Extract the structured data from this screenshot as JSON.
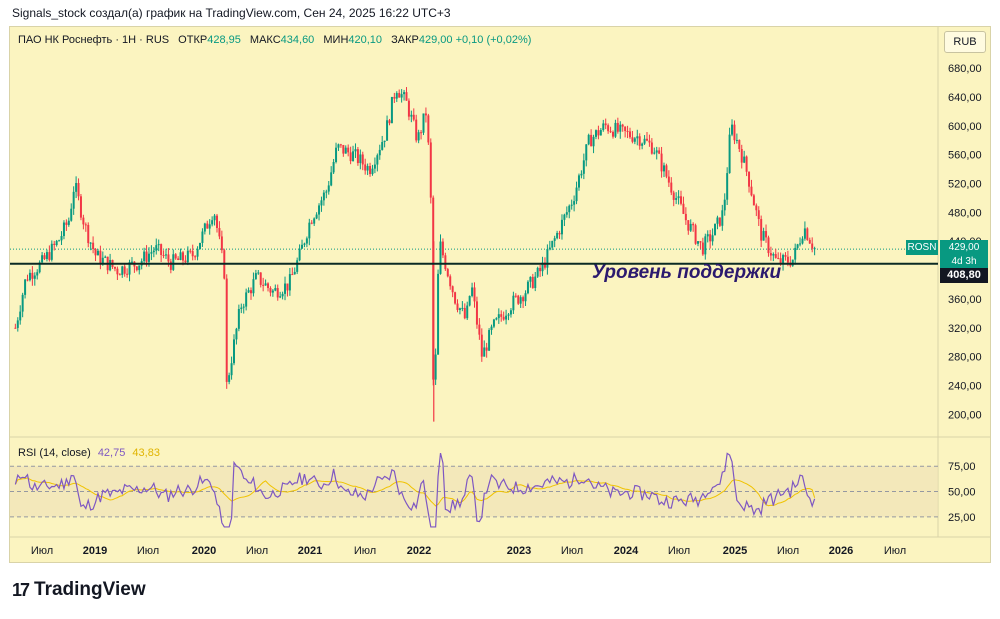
{
  "header": {
    "caption": "Signals_stock создал(а) график на TradingView.com, Сен 24, 2025 16:22 UTC+3"
  },
  "legend": {
    "symbol": "ПАО НК Роснефть · 1Н · RUS",
    "open_label": "ОТКР",
    "open": "428,95",
    "high_label": "МАКС",
    "high": "434,60",
    "low_label": "МИН",
    "low": "420,10",
    "close_label": "ЗАКР",
    "close": "429,00",
    "change": "+0,10 (+0,02%)"
  },
  "currency": "RUB",
  "price_tags": {
    "ticker": "ROSN",
    "price": "429,00",
    "countdown": "4d 3h",
    "support_level": "408,80"
  },
  "annotation": "Уровень поддержки",
  "rsi_legend": {
    "label": "RSI (14, close)",
    "rsi": "42,75",
    "ma": "43,83"
  },
  "footer": {
    "brand": "TradingView",
    "logo_mark": "17"
  },
  "colors": {
    "background": "#fbf4c0",
    "up": "#089981",
    "down": "#f23645",
    "rsi_line": "#7e57c2",
    "rsi_ma": "#f0c300",
    "support_line": "#0b2a24"
  },
  "chart_data": {
    "type": "candlestick",
    "x_tick_labels": [
      "Июл",
      "2019",
      "Июл",
      "2020",
      "Июл",
      "2021",
      "Июл",
      "2022",
      "2023",
      "Июл",
      "2024",
      "Июл",
      "2025",
      "Июл",
      "2026",
      "Июл"
    ],
    "y_ticks": [
      200,
      240,
      280,
      320,
      360,
      400,
      440,
      480,
      520,
      560,
      600,
      640,
      680
    ],
    "y_tick_labels": [
      "200,00",
      "240,00",
      "280,00",
      "320,00",
      "360,00",
      "400,00",
      "440,00",
      "480,00",
      "520,00",
      "560,00",
      "600,00",
      "640,00",
      "680,00"
    ],
    "ylim": [
      170,
      705
    ],
    "support_level": 408.8,
    "last_price": 429.0,
    "price_path": [
      [
        2018.25,
        320
      ],
      [
        2018.35,
        390
      ],
      [
        2018.5,
        410
      ],
      [
        2018.65,
        440
      ],
      [
        2018.75,
        470
      ],
      [
        2018.8,
        520
      ],
      [
        2018.9,
        460
      ],
      [
        2019.0,
        420
      ],
      [
        2019.2,
        400
      ],
      [
        2019.4,
        410
      ],
      [
        2019.55,
        430
      ],
      [
        2019.7,
        410
      ],
      [
        2019.9,
        420
      ],
      [
        2020.0,
        450
      ],
      [
        2020.1,
        485
      ],
      [
        2020.15,
        440
      ],
      [
        2020.2,
        395
      ],
      [
        2020.22,
        240
      ],
      [
        2020.35,
        350
      ],
      [
        2020.5,
        390
      ],
      [
        2020.65,
        370
      ],
      [
        2020.8,
        380
      ],
      [
        2020.9,
        420
      ],
      [
        2021.0,
        470
      ],
      [
        2021.15,
        510
      ],
      [
        2021.25,
        570
      ],
      [
        2021.4,
        560
      ],
      [
        2021.55,
        540
      ],
      [
        2021.7,
        590
      ],
      [
        2021.8,
        655
      ],
      [
        2021.9,
        630
      ],
      [
        2022.0,
        580
      ],
      [
        2022.08,
        620
      ],
      [
        2022.12,
        520
      ],
      [
        2022.15,
        190
      ],
      [
        2022.2,
        440
      ],
      [
        2022.35,
        360
      ],
      [
        2022.45,
        330
      ],
      [
        2022.5,
        380
      ],
      [
        2022.6,
        280
      ],
      [
        2022.7,
        320
      ],
      [
        2022.85,
        350
      ],
      [
        2023.0,
        370
      ],
      [
        2023.15,
        400
      ],
      [
        2023.3,
        450
      ],
      [
        2023.45,
        500
      ],
      [
        2023.6,
        580
      ],
      [
        2023.75,
        600
      ],
      [
        2023.9,
        590
      ],
      [
        2024.05,
        585
      ],
      [
        2024.2,
        570
      ],
      [
        2024.35,
        520
      ],
      [
        2024.5,
        470
      ],
      [
        2024.65,
        430
      ],
      [
        2024.75,
        450
      ],
      [
        2024.85,
        480
      ],
      [
        2024.92,
        600
      ],
      [
        2025.0,
        570
      ],
      [
        2025.08,
        530
      ],
      [
        2025.2,
        450
      ],
      [
        2025.35,
        410
      ],
      [
        2025.5,
        415
      ],
      [
        2025.6,
        460
      ],
      [
        2025.7,
        430
      ]
    ],
    "rsi": {
      "levels": [
        25,
        50,
        75
      ],
      "level_labels": [
        "25,00",
        "50,00",
        "75,00"
      ],
      "last_value": 42.75,
      "last_ma": 43.83
    }
  }
}
